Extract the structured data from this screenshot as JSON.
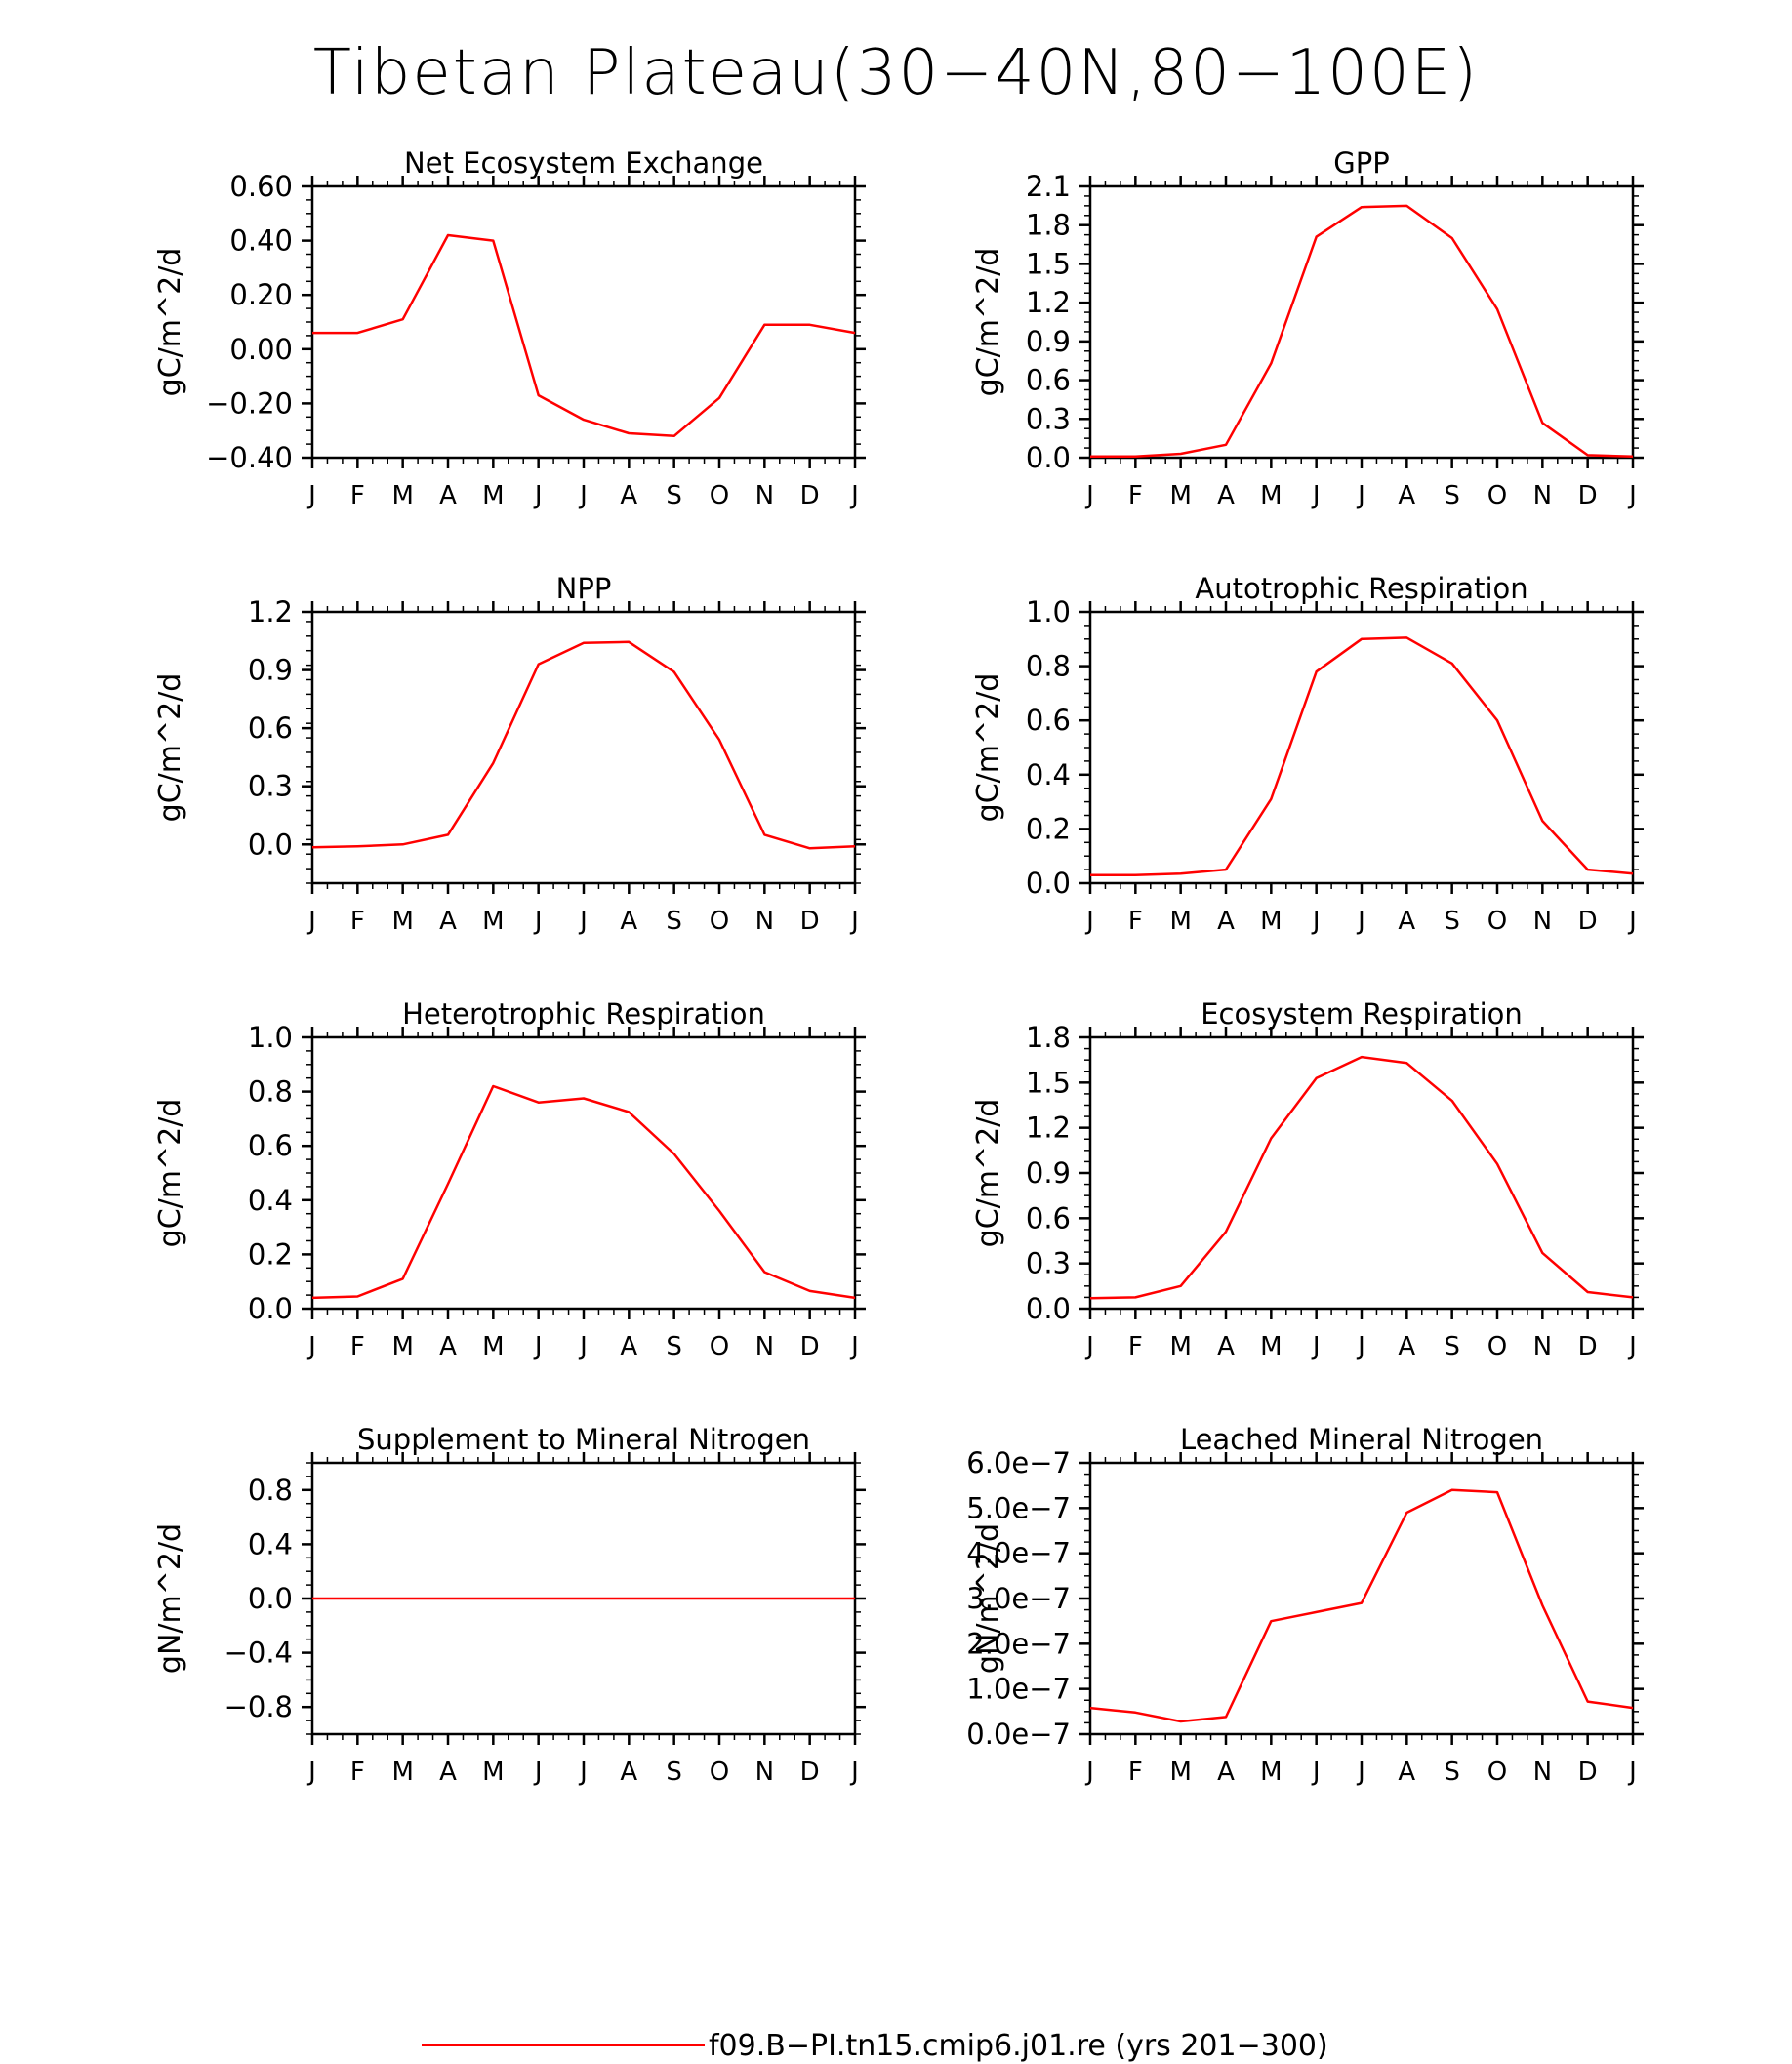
{
  "title": "Tibetan Plateau(30−40N,80−100E)",
  "line_color": "#ff0000",
  "legend_label": "f09.B−PI.tn15.cmip6.j01.re (yrs 201−300)",
  "chart_data": [
    {
      "type": "line",
      "title": "Net Ecosystem Exchange",
      "ylabel": "gC/m^2/d",
      "x": [
        "J",
        "F",
        "M",
        "A",
        "M",
        "J",
        "J",
        "A",
        "S",
        "O",
        "N",
        "D",
        "J"
      ],
      "ylim": [
        -0.4,
        0.6
      ],
      "yticks": [
        -0.4,
        -0.2,
        0.0,
        0.2,
        0.4,
        0.6
      ],
      "ytick_labels": [
        "−0.40",
        "−0.20",
        "0.00",
        "0.20",
        "0.40",
        "0.60"
      ],
      "series": [
        {
          "values": [
            0.06,
            0.06,
            0.11,
            0.42,
            0.4,
            -0.17,
            -0.26,
            -0.31,
            -0.32,
            -0.18,
            0.09,
            0.09,
            0.06
          ]
        }
      ]
    },
    {
      "type": "line",
      "title": "GPP",
      "ylabel": "gC/m^2/d",
      "x": [
        "J",
        "F",
        "M",
        "A",
        "M",
        "J",
        "J",
        "A",
        "S",
        "O",
        "N",
        "D",
        "J"
      ],
      "ylim": [
        0.0,
        2.1
      ],
      "yticks": [
        0.0,
        0.3,
        0.6,
        0.9,
        1.2,
        1.5,
        1.8,
        2.1
      ],
      "ytick_labels": [
        "0.0",
        "0.3",
        "0.6",
        "0.9",
        "1.2",
        "1.5",
        "1.8",
        "2.1"
      ],
      "series": [
        {
          "values": [
            0.01,
            0.01,
            0.03,
            0.1,
            0.73,
            1.71,
            1.94,
            1.95,
            1.7,
            1.15,
            0.27,
            0.02,
            0.01
          ]
        }
      ]
    },
    {
      "type": "line",
      "title": "NPP",
      "ylabel": "gC/m^2/d",
      "x": [
        "J",
        "F",
        "M",
        "A",
        "M",
        "J",
        "J",
        "A",
        "S",
        "O",
        "N",
        "D",
        "J"
      ],
      "ylim": [
        -0.2,
        1.2
      ],
      "yticks": [
        0.0,
        0.3,
        0.6,
        0.9,
        1.2
      ],
      "ytick_labels": [
        "0.0",
        "0.3",
        "0.6",
        "0.9",
        "1.2"
      ],
      "series": [
        {
          "values": [
            -0.015,
            -0.01,
            0.0,
            0.05,
            0.42,
            0.93,
            1.04,
            1.045,
            0.89,
            0.54,
            0.05,
            -0.02,
            -0.01
          ]
        }
      ]
    },
    {
      "type": "line",
      "title": "Autotrophic Respiration",
      "ylabel": "gC/m^2/d",
      "x": [
        "J",
        "F",
        "M",
        "A",
        "M",
        "J",
        "J",
        "A",
        "S",
        "O",
        "N",
        "D",
        "J"
      ],
      "ylim": [
        0.0,
        1.0
      ],
      "yticks": [
        0.0,
        0.2,
        0.4,
        0.6,
        0.8,
        1.0
      ],
      "ytick_labels": [
        "0.0",
        "0.2",
        "0.4",
        "0.6",
        "0.8",
        "1.0"
      ],
      "series": [
        {
          "values": [
            0.03,
            0.03,
            0.035,
            0.05,
            0.31,
            0.78,
            0.9,
            0.905,
            0.81,
            0.6,
            0.23,
            0.05,
            0.035
          ]
        }
      ]
    },
    {
      "type": "line",
      "title": "Heterotrophic Respiration",
      "ylabel": "gC/m^2/d",
      "x": [
        "J",
        "F",
        "M",
        "A",
        "M",
        "J",
        "J",
        "A",
        "S",
        "O",
        "N",
        "D",
        "J"
      ],
      "ylim": [
        0.0,
        1.0
      ],
      "yticks": [
        0.0,
        0.2,
        0.4,
        0.6,
        0.8,
        1.0
      ],
      "ytick_labels": [
        "0.0",
        "0.2",
        "0.4",
        "0.6",
        "0.8",
        "1.0"
      ],
      "series": [
        {
          "values": [
            0.04,
            0.045,
            0.11,
            0.46,
            0.82,
            0.76,
            0.775,
            0.725,
            0.57,
            0.36,
            0.135,
            0.065,
            0.04
          ]
        }
      ]
    },
    {
      "type": "line",
      "title": "Ecosystem Respiration",
      "ylabel": "gC/m^2/d",
      "x": [
        "J",
        "F",
        "M",
        "A",
        "M",
        "J",
        "J",
        "A",
        "S",
        "O",
        "N",
        "D",
        "J"
      ],
      "ylim": [
        0.0,
        1.8
      ],
      "yticks": [
        0.0,
        0.3,
        0.6,
        0.9,
        1.2,
        1.5,
        1.8
      ],
      "ytick_labels": [
        "0.0",
        "0.3",
        "0.6",
        "0.9",
        "1.2",
        "1.5",
        "1.8"
      ],
      "series": [
        {
          "values": [
            0.07,
            0.075,
            0.15,
            0.51,
            1.13,
            1.53,
            1.67,
            1.63,
            1.38,
            0.96,
            0.37,
            0.11,
            0.075
          ]
        }
      ]
    },
    {
      "type": "line",
      "title": "Supplement to Mineral Nitrogen",
      "ylabel": "gN/m^2/d",
      "x": [
        "J",
        "F",
        "M",
        "A",
        "M",
        "J",
        "J",
        "A",
        "S",
        "O",
        "N",
        "D",
        "J"
      ],
      "ylim": [
        -1.0,
        1.0
      ],
      "yticks": [
        -0.8,
        -0.4,
        0.0,
        0.4,
        0.8
      ],
      "ytick_labels": [
        "−0.8",
        "−0.4",
        "0.0",
        "0.4",
        "0.8"
      ],
      "series": [
        {
          "values": [
            0,
            0,
            0,
            0,
            0,
            0,
            0,
            0,
            0,
            0,
            0,
            0,
            0
          ]
        }
      ]
    },
    {
      "type": "line",
      "title": "Leached Mineral Nitrogen",
      "ylabel": "gN/m^2/d",
      "x": [
        "J",
        "F",
        "M",
        "A",
        "M",
        "J",
        "J",
        "A",
        "S",
        "O",
        "N",
        "D",
        "J"
      ],
      "ylim": [
        0.0,
        6e-07
      ],
      "yticks": [
        0.0,
        1e-07,
        2e-07,
        3e-07,
        4e-07,
        5e-07,
        6e-07
      ],
      "ytick_labels": [
        "0.0e−7",
        "1.0e−7",
        "2.0e−7",
        "3.0e−7",
        "4.0e−7",
        "5.0e−7",
        "6.0e−7"
      ],
      "series": [
        {
          "values": [
            5.8e-08,
            4.8e-08,
            2.8e-08,
            3.8e-08,
            2.5e-07,
            2.7e-07,
            2.9e-07,
            4.9e-07,
            5.4e-07,
            5.35e-07,
            2.85e-07,
            7.2e-08,
            5.8e-08
          ]
        }
      ]
    }
  ]
}
